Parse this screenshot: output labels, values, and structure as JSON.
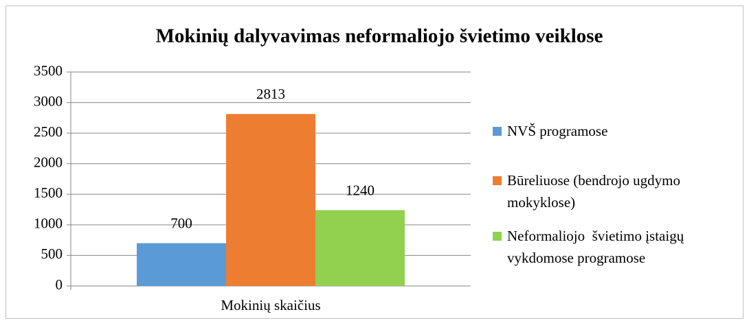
{
  "chart_data": {
    "type": "bar",
    "title": "Mokinių dalyvavimas neformaliojo švietimo veiklose",
    "categories": [
      "Mokinių skaičius"
    ],
    "series": [
      {
        "name": "NVŠ programose",
        "color": "#5b9bd5",
        "values": [
          700
        ]
      },
      {
        "name": "Būreliuose (bendrojo ugdymo mokyklose)",
        "color": "#ed7d31",
        "values": [
          2813
        ]
      },
      {
        "name": "Neformaliojo  švietimo įstaigų vykdomose programose",
        "color": "#92d050",
        "values": [
          1240
        ]
      }
    ],
    "ylim": [
      0,
      3500
    ],
    "yticks": [
      0,
      500,
      1000,
      1500,
      2000,
      2500,
      3000,
      3500
    ],
    "grid": true,
    "legend": "right"
  }
}
